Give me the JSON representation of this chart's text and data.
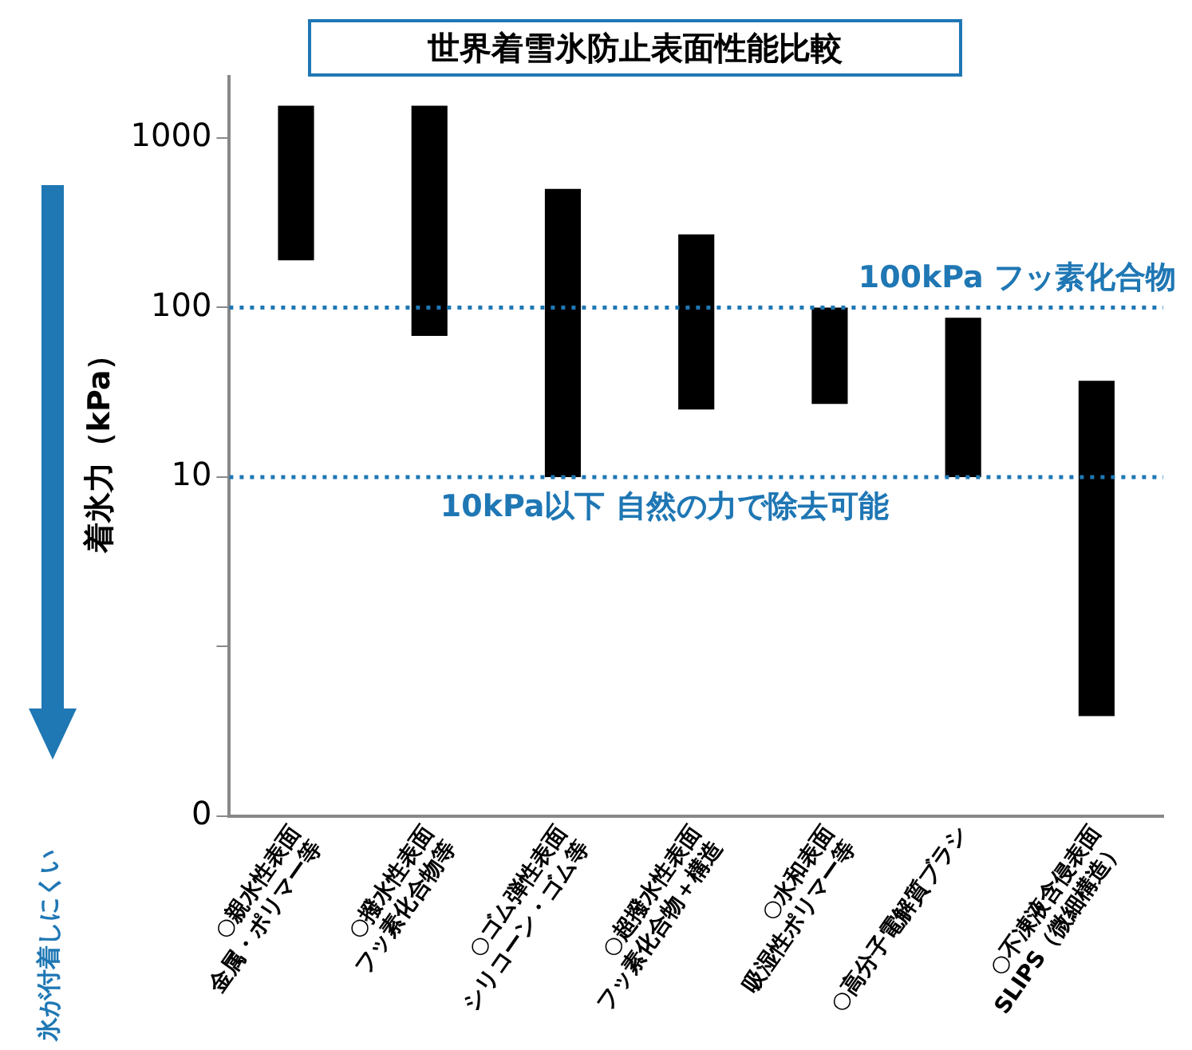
{
  "chart_data": {
    "type": "bar",
    "title": "世界着雪氷防止表面性能比較",
    "ylabel": "着氷力（kPa）",
    "categories": [
      "○親水性表面\n金属・ポリマー等",
      "○撥水性表面\nフッ素化合物等",
      "○ゴム弾性表面\nシリコーン・ゴム等",
      "○超撥水性表面\nフッ素化合物＋構造",
      "○水和表面\n吸湿性ポリマー等",
      "○高分子電解質ブラシ",
      "○不凍液含侵表面\nSLIPS（微細構造）"
    ],
    "base": [
      190,
      68,
      10,
      25,
      27,
      10,
      0.39
    ],
    "values": [
      1360,
      1482,
      490,
      245,
      73,
      77,
      36.61
    ],
    "color": "#000000",
    "log": true,
    "ylim": [
      0.1,
      2300
    ],
    "yticks": [
      {
        "value": 0.1,
        "label": "0"
      },
      {
        "value": 1,
        "label": null
      },
      10,
      100,
      1000
    ],
    "grid": false,
    "legend": false,
    "ref_lines": [
      {
        "axis": "y",
        "value": 100,
        "label": "100kPa フッ素化合物",
        "color": "#1f77b4",
        "line_style": "dotted"
      },
      {
        "axis": "y",
        "value": 10,
        "label": "10kPa以下 自然の力で除去可能",
        "color": "#1f77b4",
        "line_style": "dotted"
      }
    ],
    "annotations": [
      "氷が付着しにくい"
    ]
  }
}
